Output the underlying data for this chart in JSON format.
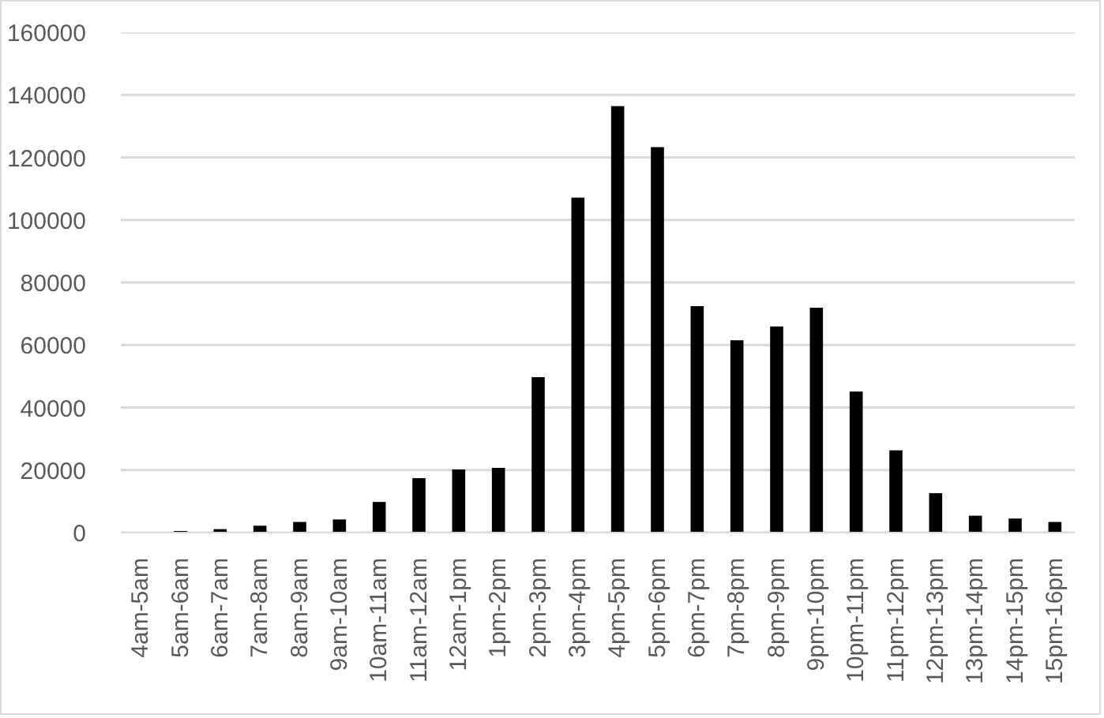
{
  "chart_data": {
    "type": "bar",
    "categories": [
      "4am-5am",
      "5am-6am",
      "6am-7am",
      "7am-8am",
      "8am-9am",
      "9am-10am",
      "10am-11am",
      "11am-12am",
      "12am-1pm",
      "1pm-2pm",
      "2pm-3pm",
      "3pm-4pm",
      "4pm-5pm",
      "5pm-6pm",
      "6pm-7pm",
      "7pm-8pm",
      "8pm-9pm",
      "9pm-10pm",
      "10pm-11pm",
      "11pm-12pm",
      "12pm-13pm",
      "13pm-14pm",
      "14pm-15pm",
      "15pm-16pm"
    ],
    "values": [
      0,
      500,
      1100,
      2200,
      3400,
      4200,
      9800,
      17400,
      20200,
      20700,
      49700,
      107100,
      136400,
      123300,
      72400,
      61500,
      65900,
      71900,
      45100,
      26300,
      12600,
      5400,
      4500,
      3400
    ],
    "color": "#000000",
    "ylim": [
      0,
      160000
    ],
    "yticks": [
      0,
      20000,
      40000,
      60000,
      80000,
      100000,
      120000,
      140000,
      160000
    ],
    "grid": "y"
  }
}
